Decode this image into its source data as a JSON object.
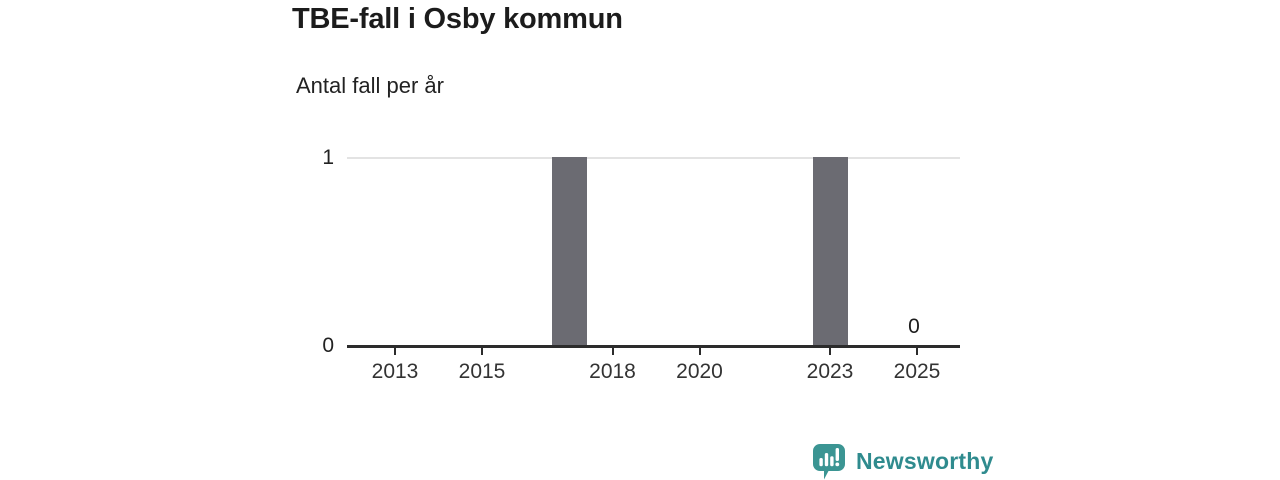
{
  "header": {
    "title": "TBE-fall i Osby kommun",
    "subtitle": "Antal fall per år"
  },
  "chart_data": {
    "type": "bar",
    "title": "TBE-fall i Osby kommun",
    "subtitle": "Antal fall per år",
    "ylabel": "Antal fall per år",
    "x": [
      2012,
      2013,
      2014,
      2015,
      2016,
      2017,
      2018,
      2019,
      2020,
      2021,
      2022,
      2023,
      2024,
      2025
    ],
    "values": [
      0,
      0,
      0,
      0,
      0,
      1,
      0,
      0,
      0,
      0,
      0,
      1,
      0,
      0
    ],
    "ylim": [
      0,
      1
    ],
    "yticks": [
      1,
      0
    ],
    "xticks": [
      2013,
      2015,
      2018,
      2020,
      2023,
      2025
    ],
    "value_labels": [
      {
        "x": 2025,
        "value": 0,
        "label": "0"
      }
    ],
    "legend_position": "none",
    "grid": "single horizontal gridline at y=1",
    "colors": {
      "bar": "#6b6b72",
      "gridline": "#e3e3e3",
      "axis": "#2c2c2c",
      "tick_label": "#333333",
      "ytick_label": "#222222",
      "value_label": "#1c1c1c"
    }
  },
  "footer": {
    "brand": "Newsworthy",
    "brand_color": "#2f8b8e",
    "icon_color": "#3b9593",
    "icon": "speech-bubble-with-bar-chart-and-exclamation"
  }
}
